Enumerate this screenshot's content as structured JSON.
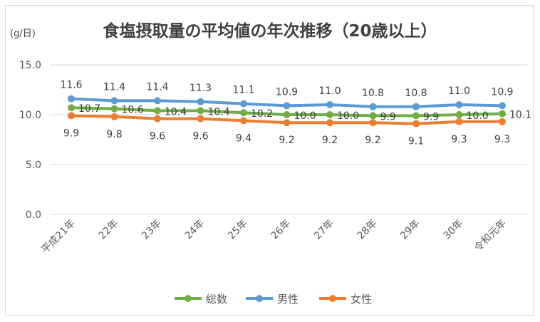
{
  "chart_data": {
    "type": "line",
    "title": "食塩摂取量の平均値の年次推移（20歳以上）",
    "ylabel": "(g/日)",
    "xlabel": "",
    "ylim": [
      0,
      15
    ],
    "yticks": [
      "0.0",
      "5.0",
      "10.0",
      "15.0"
    ],
    "ytick_values": [
      0,
      5,
      10,
      15
    ],
    "grid": true,
    "legend_position": "bottom",
    "categories": [
      "平成21年",
      "22年",
      "23年",
      "24年",
      "25年",
      "26年",
      "27年",
      "28年",
      "29年",
      "30年",
      "令和元年"
    ],
    "series": [
      {
        "name": "総数",
        "color": "#70ad47",
        "label_pos": "right",
        "values": [
          10.7,
          10.6,
          10.4,
          10.4,
          10.2,
          10.0,
          10.0,
          9.9,
          9.9,
          10.0,
          10.1
        ]
      },
      {
        "name": "男性",
        "color": "#5b9bd5",
        "label_pos": "above",
        "values": [
          11.6,
          11.4,
          11.4,
          11.3,
          11.1,
          10.9,
          11.0,
          10.8,
          10.8,
          11.0,
          10.9
        ]
      },
      {
        "name": "女性",
        "color": "#ed7d31",
        "label_pos": "below",
        "values": [
          9.9,
          9.8,
          9.6,
          9.6,
          9.4,
          9.2,
          9.2,
          9.2,
          9.1,
          9.3,
          9.3
        ]
      }
    ]
  }
}
